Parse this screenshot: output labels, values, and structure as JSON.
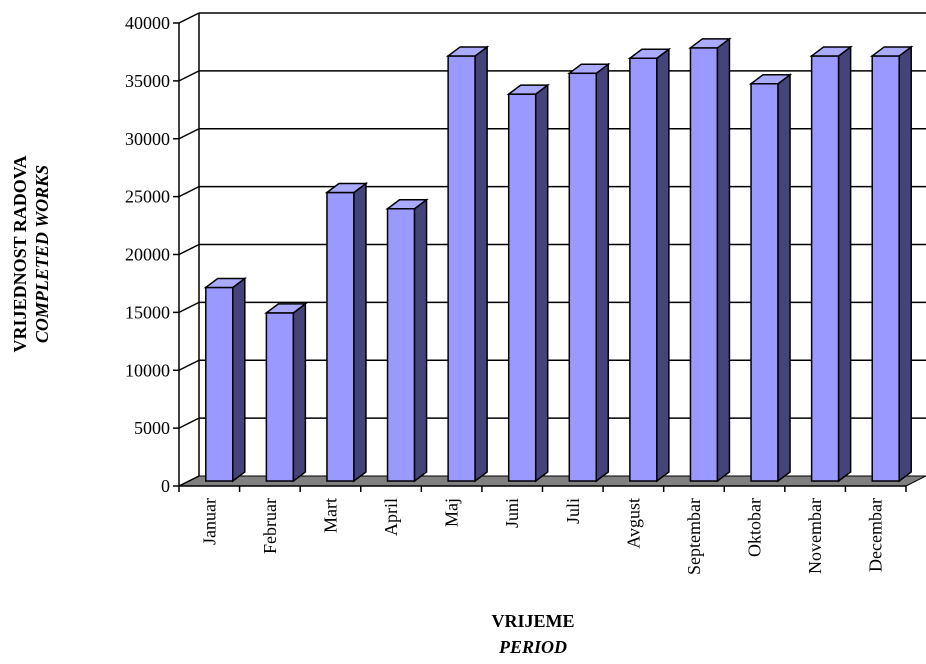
{
  "chart_data": {
    "type": "bar",
    "style": "3d-column",
    "categories": [
      "Januar",
      "Februar",
      "Mart",
      "April",
      "Maj",
      "Juni",
      "Juli",
      "Avgust",
      "Septembar",
      "Oktobar",
      "Novembar",
      "Decembar"
    ],
    "series": [
      {
        "values": [
          17500,
          15300,
          25700,
          24300,
          37500,
          34200,
          36000,
          37300,
          38200,
          35100,
          37500,
          37500
        ]
      }
    ],
    "ylim": [
      0,
      40000
    ],
    "yticks": [
      0,
      5000,
      10000,
      15000,
      20000,
      25000,
      30000,
      35000,
      40000
    ],
    "grid": true,
    "legend": "none",
    "ylabel": "VRIJEDNOST RADOVA",
    "ylabel_italic": "COMPLETED WORKS",
    "xlabel": "VRIJEME",
    "xlabel_italic": "PERIOD",
    "colors": {
      "bar_front": "#9999ff",
      "bar_top": "#aaaaff",
      "bar_side": "#44447a",
      "floor": "#808080",
      "edge": "#000000",
      "grid": "#000000"
    }
  }
}
